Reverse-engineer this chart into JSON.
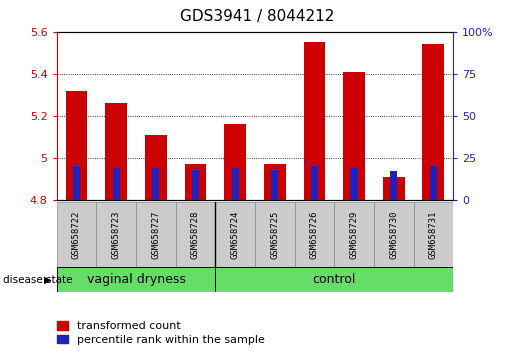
{
  "title": "GDS3941 / 8044212",
  "samples": [
    "GSM658722",
    "GSM658723",
    "GSM658727",
    "GSM658728",
    "GSM658724",
    "GSM658725",
    "GSM658726",
    "GSM658729",
    "GSM658730",
    "GSM658731"
  ],
  "groups": [
    "vaginal dryness",
    "vaginal dryness",
    "vaginal dryness",
    "vaginal dryness",
    "control",
    "control",
    "control",
    "control",
    "control",
    "control"
  ],
  "red_values": [
    5.32,
    5.26,
    5.11,
    4.97,
    5.16,
    4.97,
    5.55,
    5.41,
    4.91,
    5.54
  ],
  "blue_pct": [
    20,
    19,
    19,
    18,
    19,
    18,
    20,
    19,
    17,
    20
  ],
  "ymin": 4.8,
  "ymax": 5.6,
  "y2min": 0,
  "y2max": 100,
  "yticks": [
    4.8,
    5.0,
    5.2,
    5.4,
    5.6
  ],
  "y2ticks": [
    0,
    25,
    50,
    75,
    100
  ],
  "bar_width": 0.55,
  "blue_bar_width": 0.18,
  "red_color": "#cc0000",
  "blue_color": "#2222bb",
  "green_color": "#66dd66",
  "gray_color": "#cccccc",
  "legend_red": "transformed count",
  "legend_blue": "percentile rank within the sample",
  "title_fontsize": 11,
  "tick_fontsize": 8,
  "sample_fontsize": 6.5,
  "group_fontsize": 9,
  "legend_fontsize": 8,
  "n_vaginal": 4,
  "n_control": 6
}
